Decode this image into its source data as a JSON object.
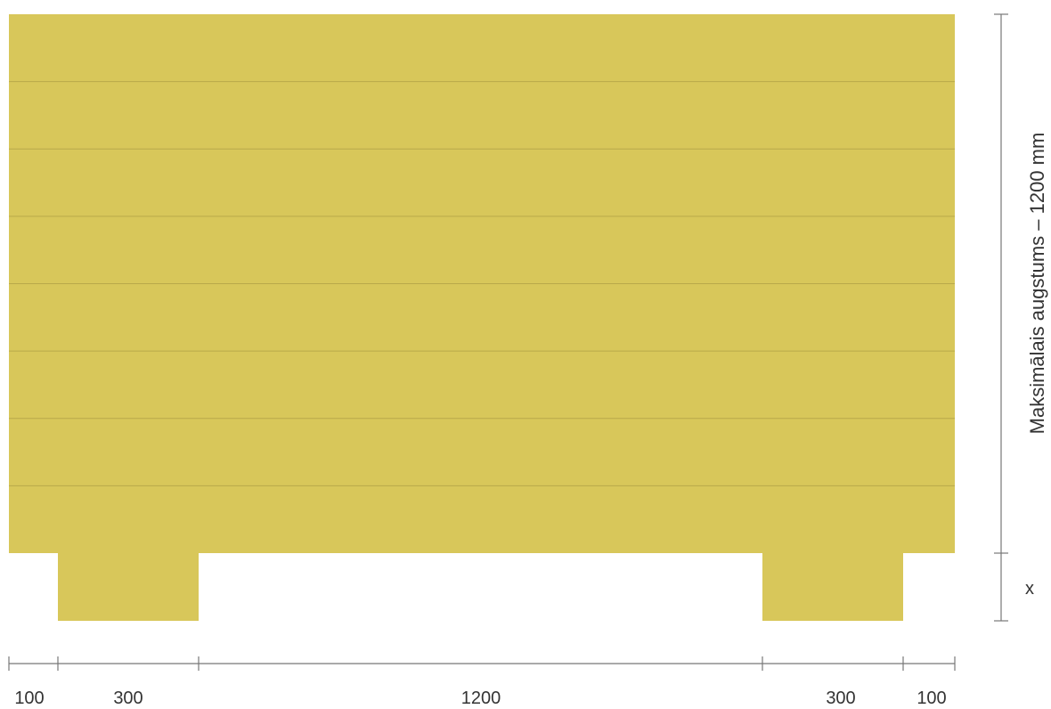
{
  "diagram": {
    "colors": {
      "panel": "#d8c75a",
      "plank_line": "#b8a84a",
      "dimension_line": "#777777",
      "text": "#333333"
    },
    "panel": {
      "plank_count": 8
    },
    "bottom_dimensions": [
      {
        "label": "100",
        "value": 100
      },
      {
        "label": "300",
        "value": 300
      },
      {
        "label": "1200",
        "value": 1200
      },
      {
        "label": "300",
        "value": 300
      },
      {
        "label": "100",
        "value": 100
      }
    ],
    "right_dimensions": {
      "height_label": "Maksimālais augstums – 1200 mm",
      "gap_label": "x"
    }
  }
}
